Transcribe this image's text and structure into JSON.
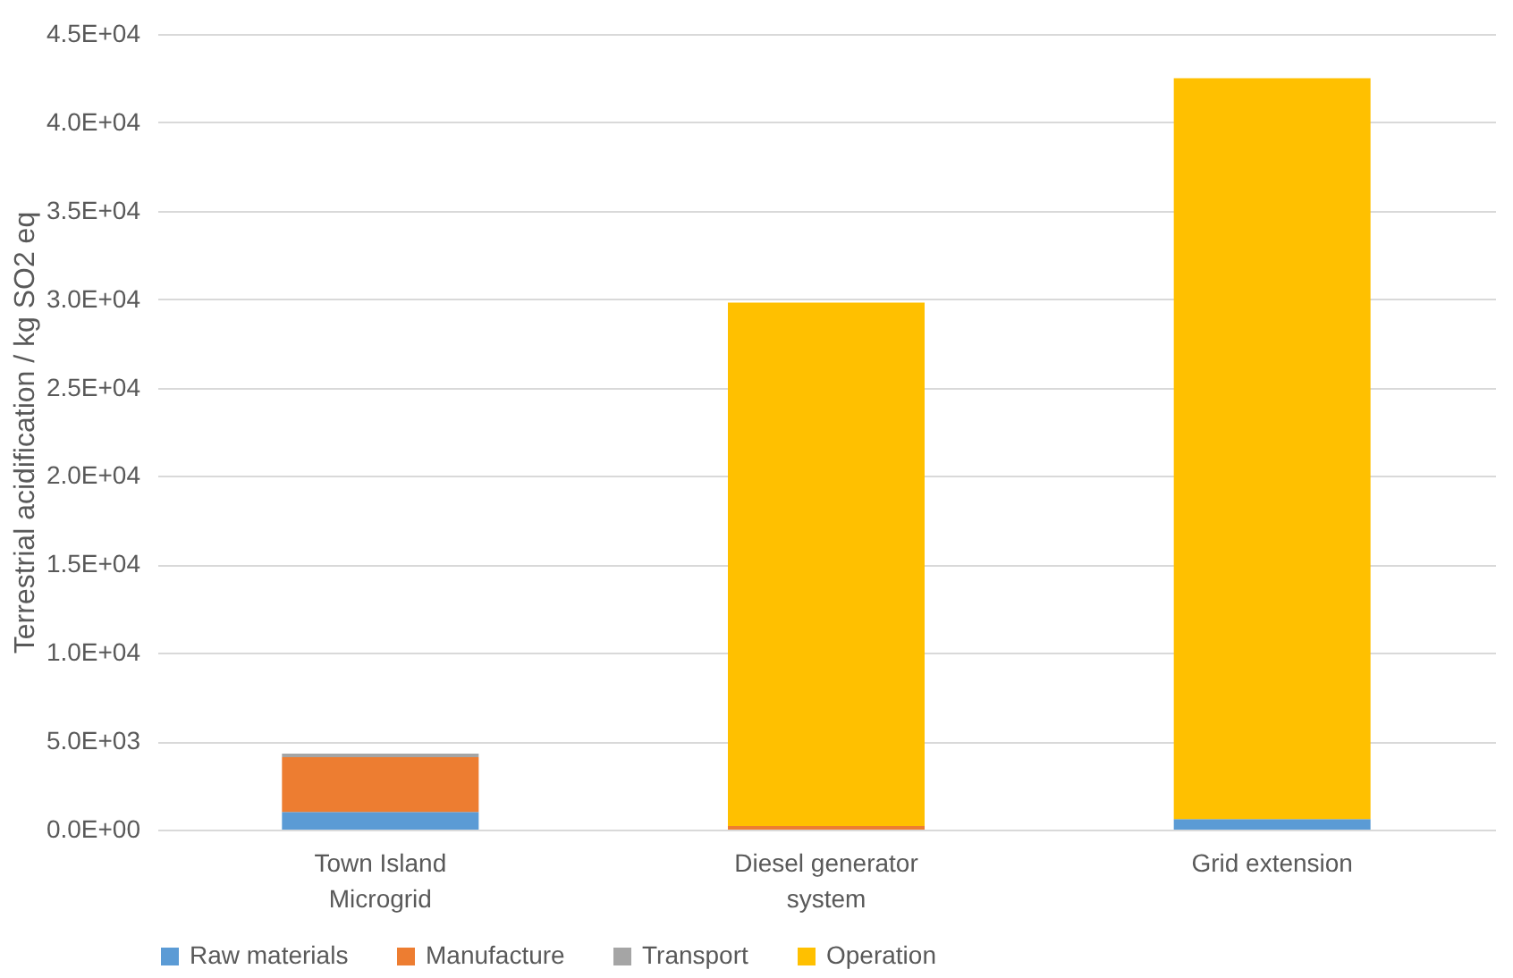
{
  "chart_data": {
    "type": "bar",
    "stacked": true,
    "ylabel": "Terrestrial acidification / kg SO2 eq",
    "categories": [
      "Town Island Microgrid",
      "Diesel generator system",
      "Grid extension"
    ],
    "series": [
      {
        "name": "Raw materials",
        "color": "#5b9bd5",
        "values": [
          1000,
          null,
          600
        ]
      },
      {
        "name": "Manufacture",
        "color": "#ed7d31",
        "values": [
          3100,
          200,
          null
        ]
      },
      {
        "name": "Transport",
        "color": "#a5a5a5",
        "values": [
          200,
          null,
          null
        ]
      },
      {
        "name": "Operation",
        "color": "#ffc000",
        "values": [
          0,
          29600,
          41900
        ]
      }
    ],
    "ylim": [
      0,
      45000
    ],
    "yticks": [
      {
        "value": 0,
        "label": "0.0E+00"
      },
      {
        "value": 5000,
        "label": "5.0E+03"
      },
      {
        "value": 10000,
        "label": "1.0E+04"
      },
      {
        "value": 15000,
        "label": "1.5E+04"
      },
      {
        "value": 20000,
        "label": "2.0E+04"
      },
      {
        "value": 25000,
        "label": "2.5E+04"
      },
      {
        "value": 30000,
        "label": "3.0E+04"
      },
      {
        "value": 35000,
        "label": "3.5E+04"
      },
      {
        "value": 40000,
        "label": "4.0E+04"
      },
      {
        "value": 45000,
        "label": "4.5E+04"
      }
    ],
    "grid": "y",
    "legend": "bottom"
  }
}
